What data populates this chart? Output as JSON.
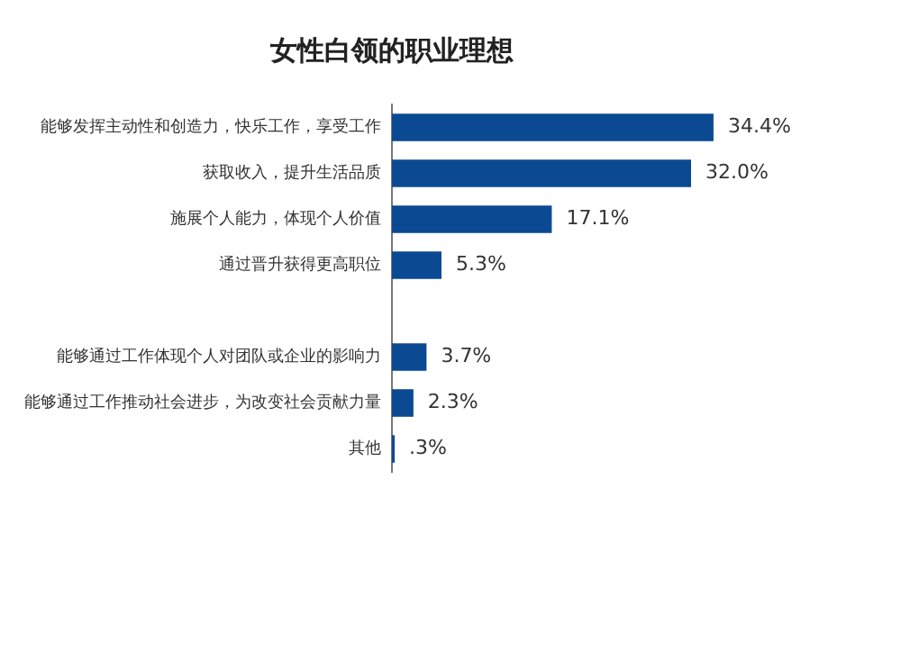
{
  "chart_data": {
    "type": "bar",
    "orientation": "horizontal",
    "title": "女性白领的职业理想",
    "categories": [
      "能够发挥主动性和创造力，快乐工作，享受工作",
      "获取收入，提升生活品质",
      "施展个人能力，体现个人价值",
      "通过晋升获得更高职位",
      null,
      "能够通过工作体现个人对团队或企业的影响力",
      "能够通过工作推动社会进步，为改变社会贡献力量",
      "其他"
    ],
    "values": [
      34.4,
      32.0,
      17.1,
      5.3,
      null,
      3.7,
      2.3,
      0.3
    ],
    "value_labels": [
      "34.4%",
      "32.0%",
      "17.1%",
      "5.3%",
      null,
      "3.7%",
      "2.3%",
      ".3%"
    ],
    "color": "#0b4a93",
    "tick_labels": "y"
  }
}
